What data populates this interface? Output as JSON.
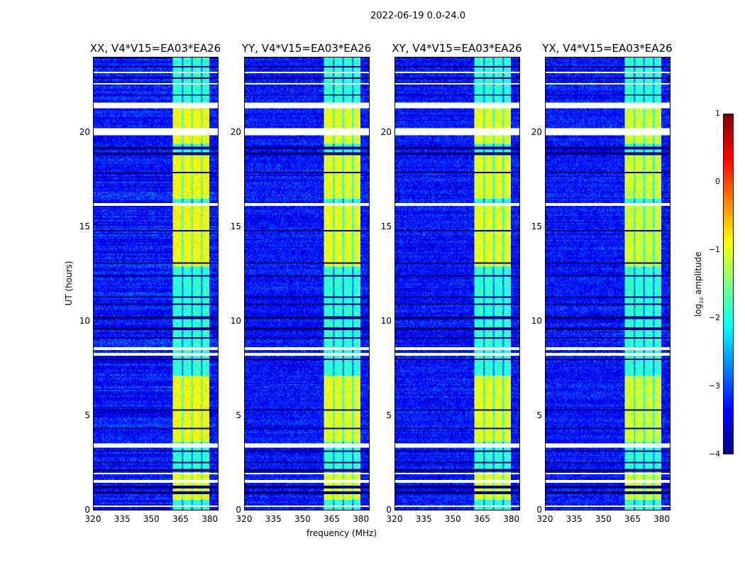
{
  "chart_data": {
    "type": "heatmap",
    "title": "2022-06-19 0.0-24.0",
    "panels": [
      {
        "title": "XX, V4*V15=EA03*EA26",
        "band_peak": -0.9
      },
      {
        "title": "YY, V4*V15=EA03*EA26",
        "band_peak": -1.0
      },
      {
        "title": "XY, V4*V15=EA03*EA26",
        "band_peak": -1.0
      },
      {
        "title": "YX, V4*V15=EA03*EA26",
        "band_peak": -1.1
      }
    ],
    "xlabel": "frequency (MHz)",
    "ylabel": "UT (hours)",
    "xlim": [
      320,
      384.5
    ],
    "ylim": [
      0,
      24
    ],
    "xticks": [
      "320",
      "335",
      "350",
      "365",
      "380"
    ],
    "xtick_values": [
      320,
      335,
      350,
      365,
      380
    ],
    "yticks": [
      "0",
      "5",
      "10",
      "15",
      "20"
    ],
    "ytick_values": [
      0,
      5,
      10,
      15,
      20
    ],
    "colorbar": {
      "label": "log10 amplitude",
      "label_main": "log",
      "label_sub": "10",
      "label_rest": " amplitude",
      "ticks": [
        "1",
        "0",
        "−1",
        "−2",
        "−3",
        "−4"
      ],
      "tick_values": [
        1,
        0,
        -1,
        -2,
        -3,
        -4
      ],
      "range": [
        -4,
        1
      ],
      "colormap": "jet"
    },
    "background_level": -3.3,
    "rfi_band_mhz": [
      361,
      380
    ],
    "subband_gaps_mhz": [
      366,
      371,
      376
    ],
    "bright_intervals_hours": [
      [
        0.5,
        1.9
      ],
      [
        3.6,
        7.1
      ],
      [
        12.9,
        16.1
      ],
      [
        16.5,
        18.8
      ],
      [
        19.4,
        21.5
      ]
    ],
    "flagged_intervals_hours": [
      [
        0.15,
        0.25
      ],
      [
        1.45,
        1.55
      ],
      [
        1.85,
        1.95
      ],
      [
        3.3,
        3.55
      ],
      [
        8.2,
        8.3
      ],
      [
        8.5,
        8.6
      ],
      [
        16.1,
        16.25
      ],
      [
        19.85,
        20.25
      ],
      [
        21.3,
        21.6
      ],
      [
        22.55,
        22.65
      ],
      [
        23.15,
        23.25
      ]
    ],
    "dark_lines_hours": [
      0.9,
      1.2,
      2.1,
      2.5,
      3.1,
      4.3,
      5.3,
      8.0,
      9.1,
      9.6,
      10.2,
      10.9,
      11.3,
      12.4,
      13.1,
      14.8,
      17.9,
      18.9,
      19.2,
      22.0,
      22.9,
      23.5
    ]
  }
}
